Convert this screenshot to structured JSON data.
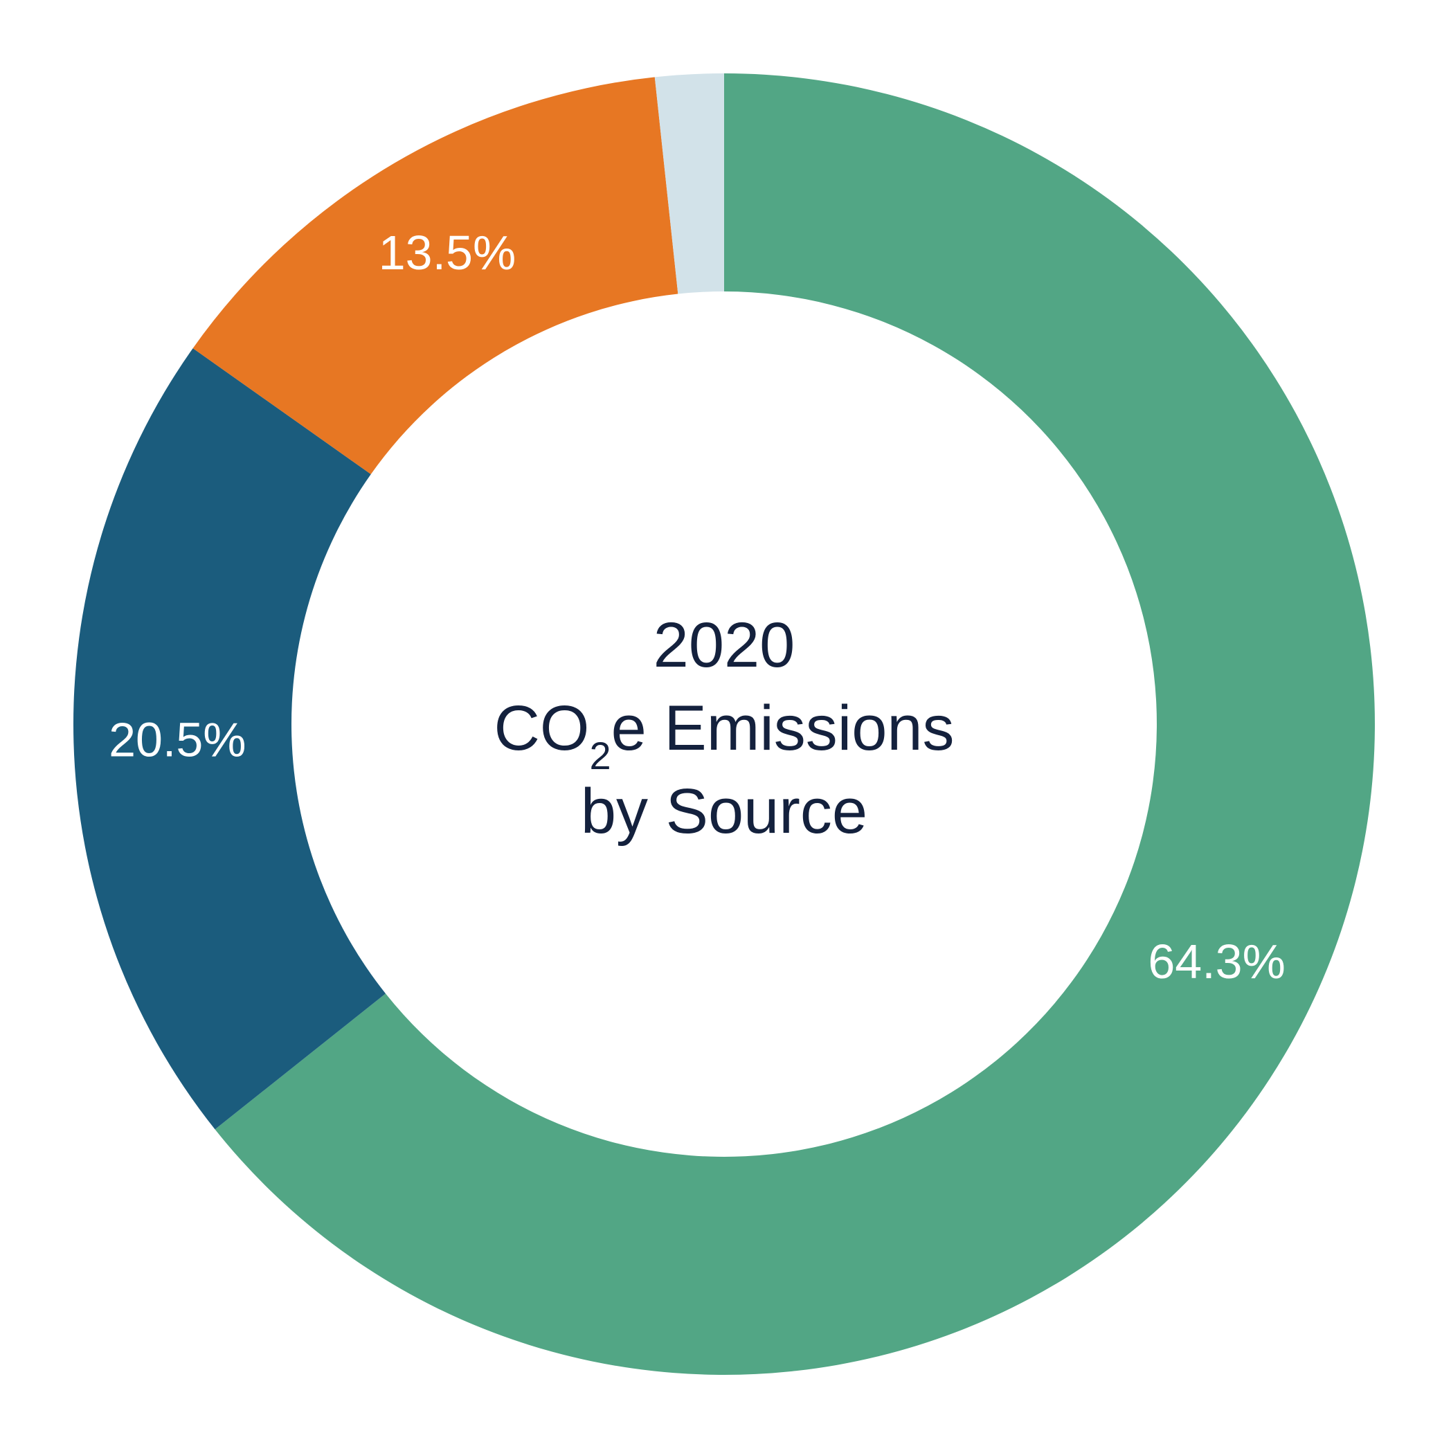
{
  "chart_data": {
    "type": "pie",
    "style": "donut",
    "title_lines": [
      "2020",
      "CO",
      "2",
      "e Emissions",
      "by Source"
    ],
    "slices": [
      {
        "value": 64.3,
        "label": "64.3%",
        "color": "#52a685"
      },
      {
        "value": 20.5,
        "label": "20.5%",
        "color": "#1b5c7d"
      },
      {
        "value": 13.5,
        "label": "13.5%",
        "color": "#e77723"
      },
      {
        "value": 1.7,
        "label": "",
        "color": "#d2e2e9"
      }
    ],
    "start": "12 o'clock",
    "direction": "clockwise",
    "legend": "none"
  }
}
